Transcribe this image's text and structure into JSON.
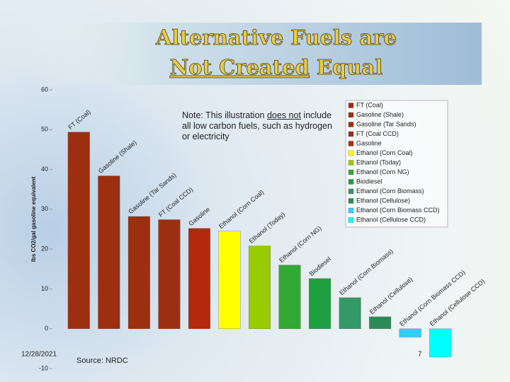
{
  "chart_data": {
    "type": "bar",
    "title": [
      "Alternative Fuels are",
      "Not Created",
      "Equal"
    ],
    "note": [
      "Note: This illustration ",
      "does not",
      " include all low carbon fuels, such as hydrogen or electricity"
    ],
    "y_label": "lbs CO2/gal gasoline equivalent",
    "categories": [
      "FT (Coal)",
      "Gasoline (Shale)",
      "Gasoline (Tar Sands)",
      "FT (Coal CCD)",
      "Gasoline",
      "Ethanol (Corn Coal)",
      "Ethanol (Today)",
      "Ethanol (Corn NG)",
      "Biodiesel",
      "Ethanol (Corn Biomass)",
      "Ethanol (Cellulose)",
      "Ethanol (Corn Biomass CCD)",
      "Ethanol (Cellulose CCD)"
    ],
    "values": [
      49.4,
      38.4,
      28.2,
      27.4,
      25.2,
      24.5,
      20.8,
      16,
      12.6,
      7.8,
      3,
      -2.1,
      -7.1
    ],
    "colors": [
      "#9c2f10",
      "#9c2f10",
      "#9c2f10",
      "#9c2f10",
      "#b3280e",
      "#ffff00",
      "#99cc00",
      "#33a833",
      "#1fa040",
      "#339966",
      "#2e8a55",
      "#33ccff",
      "#00ffff"
    ],
    "ylim": [
      -10,
      60
    ],
    "yticks": [
      60,
      50,
      40,
      30,
      20,
      10,
      0,
      -10
    ],
    "legend": "right",
    "date": "12/28/2021",
    "source": "Source: NRDC",
    "page": "7"
  }
}
